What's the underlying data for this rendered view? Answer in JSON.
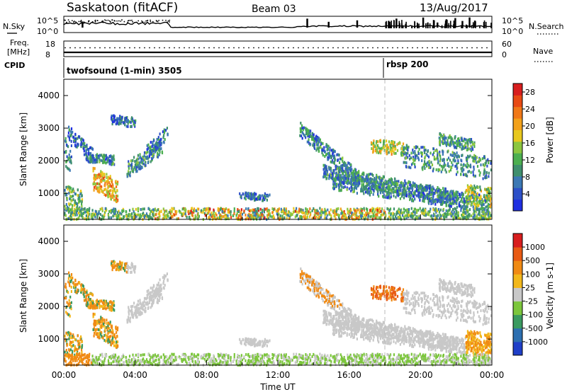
{
  "header": {
    "site": "Saskatoon (fitACF)",
    "beam": "Beam 03",
    "date": "13/Aug/2017"
  },
  "nsky_panel": {
    "left_label": "N.Sky",
    "right_label": "N.Search",
    "left_ticks": [
      "10^5",
      "10^0"
    ],
    "right_ticks": [
      "10^5",
      "10^0"
    ]
  },
  "freq_panel": {
    "left_label_1": "Freq.",
    "left_label_2": "[MHz]",
    "right_label": "Nave",
    "left_ticks": [
      "18",
      "8"
    ],
    "right_ticks": [
      "60",
      "0"
    ]
  },
  "cpid_panel": {
    "label": "CPID",
    "modes": [
      {
        "text": "twofsound (1-min) 3505",
        "start_hour": 0
      },
      {
        "text": "rbsp 200",
        "start_hour": 18.0
      }
    ]
  },
  "chart_data": [
    {
      "type": "heatmap",
      "name": "power",
      "ylabel": "Slant Range [km]",
      "y_ticks": [
        1000,
        2000,
        3000,
        4000
      ],
      "ylim": [
        200,
        4500
      ],
      "x_ticks": [
        "00:00",
        "04:00",
        "08:00",
        "12:00",
        "16:00",
        "20:00",
        "00:00"
      ],
      "xlim_hours": [
        0,
        24
      ],
      "colorbar": {
        "label": "Power [dB]",
        "ticks": [
          "4",
          "8",
          "12",
          "16",
          "20",
          "24",
          "28"
        ],
        "range": [
          0,
          30
        ],
        "colors": [
          "#1f2fe0",
          "#2d50c8",
          "#3c78b4",
          "#3f8f6e",
          "#4caf50",
          "#8cc63f",
          "#e8c81e",
          "#f2a11b",
          "#f07818",
          "#e84a14",
          "#d81e1e"
        ]
      }
    },
    {
      "type": "heatmap",
      "name": "velocity",
      "ylabel": "Slant Range [km]",
      "y_ticks": [
        1000,
        2000,
        3000,
        4000
      ],
      "ylim": [
        200,
        4500
      ],
      "x_ticks": [
        "00:00",
        "04:00",
        "08:00",
        "12:00",
        "16:00",
        "20:00",
        "00:00"
      ],
      "xlim_hours": [
        0,
        24
      ],
      "xlabel": "Time UT",
      "colorbar": {
        "label": "Velocity [m s-1]",
        "ticks": [
          "1000",
          "500",
          "100",
          "25",
          "-25",
          "-100",
          "-500",
          "-1000"
        ],
        "colors": [
          "#1f3fc8",
          "#2d6fb0",
          "#3a9a60",
          "#7cc63c",
          "#c8c8c8",
          "#f2b81c",
          "#f08a14",
          "#e85a14",
          "#d81e1e"
        ]
      }
    }
  ],
  "colors": {
    "gridline_dashed": "#bbbbbb",
    "dark": "#000000",
    "gray_ground": "#bdbdbd"
  }
}
